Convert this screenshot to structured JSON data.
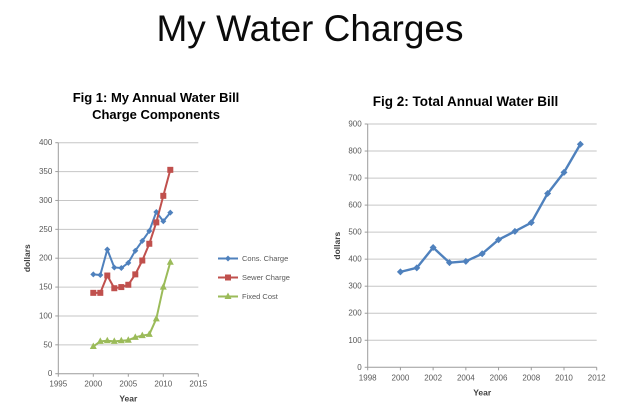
{
  "slide": {
    "title": "My Water Charges"
  },
  "colors": {
    "accent_blue": "#4F81BD",
    "accent_red": "#C0504D",
    "accent_green": "#9BBB59",
    "grid": "#C6C6C6",
    "axis": "#9C9C9C",
    "tick_text": "#595959",
    "axis_label_text": "#404040"
  },
  "chart_data": [
    {
      "type": "line",
      "title": "Fig 1: My Annual Water Bill Charge Components",
      "title_lines": [
        "Fig 1: My Annual Water Bill",
        "Charge Components"
      ],
      "xlabel": "Year",
      "ylabel": "dollars",
      "x": [
        2000,
        2001,
        2002,
        2003,
        2004,
        2005,
        2006,
        2007,
        2008,
        2009,
        2010,
        2011
      ],
      "series": [
        {
          "name": "Cons. Charge",
          "color": "#4F81BD",
          "marker": "diamond",
          "values": [
            172,
            171,
            215,
            184,
            183,
            192,
            213,
            230,
            247,
            280,
            264,
            279
          ]
        },
        {
          "name": "Sewer Charge",
          "color": "#C0504D",
          "marker": "square",
          "values": [
            140,
            140,
            170,
            148,
            150,
            154,
            172,
            196,
            225,
            262,
            308,
            353
          ]
        },
        {
          "name": "Fixed Cost",
          "color": "#9BBB59",
          "marker": "triangle",
          "values": [
            47,
            56,
            57,
            56,
            57,
            58,
            63,
            66,
            68,
            95,
            150,
            193
          ]
        }
      ],
      "xlim": [
        1995,
        2015
      ],
      "xticks": [
        1995,
        2000,
        2005,
        2010,
        2015
      ],
      "ylim": [
        0,
        400
      ],
      "yticks": [
        0,
        50,
        100,
        150,
        200,
        250,
        300,
        350,
        400
      ],
      "grid": true,
      "legend_position": "right"
    },
    {
      "type": "line",
      "title": "Fig 2: Total Annual Water Bill",
      "title_lines": [
        "Fig 2: Total Annual Water Bill"
      ],
      "xlabel": "Year",
      "ylabel": "dollars",
      "x": [
        2000,
        2001,
        2002,
        2003,
        2004,
        2005,
        2006,
        2007,
        2008,
        2009,
        2010,
        2011
      ],
      "series": [
        {
          "name": "Total Annual Water Bill",
          "color": "#4F81BD",
          "marker": "diamond",
          "values": [
            353,
            368,
            443,
            387,
            392,
            420,
            472,
            503,
            535,
            643,
            721,
            825
          ]
        }
      ],
      "xlim": [
        1998,
        2012
      ],
      "xticks": [
        1998,
        2000,
        2002,
        2004,
        2006,
        2008,
        2010,
        2012
      ],
      "ylim": [
        0,
        900
      ],
      "yticks": [
        0,
        100,
        200,
        300,
        400,
        500,
        600,
        700,
        800,
        900
      ],
      "grid": true,
      "legend_position": "none"
    }
  ]
}
